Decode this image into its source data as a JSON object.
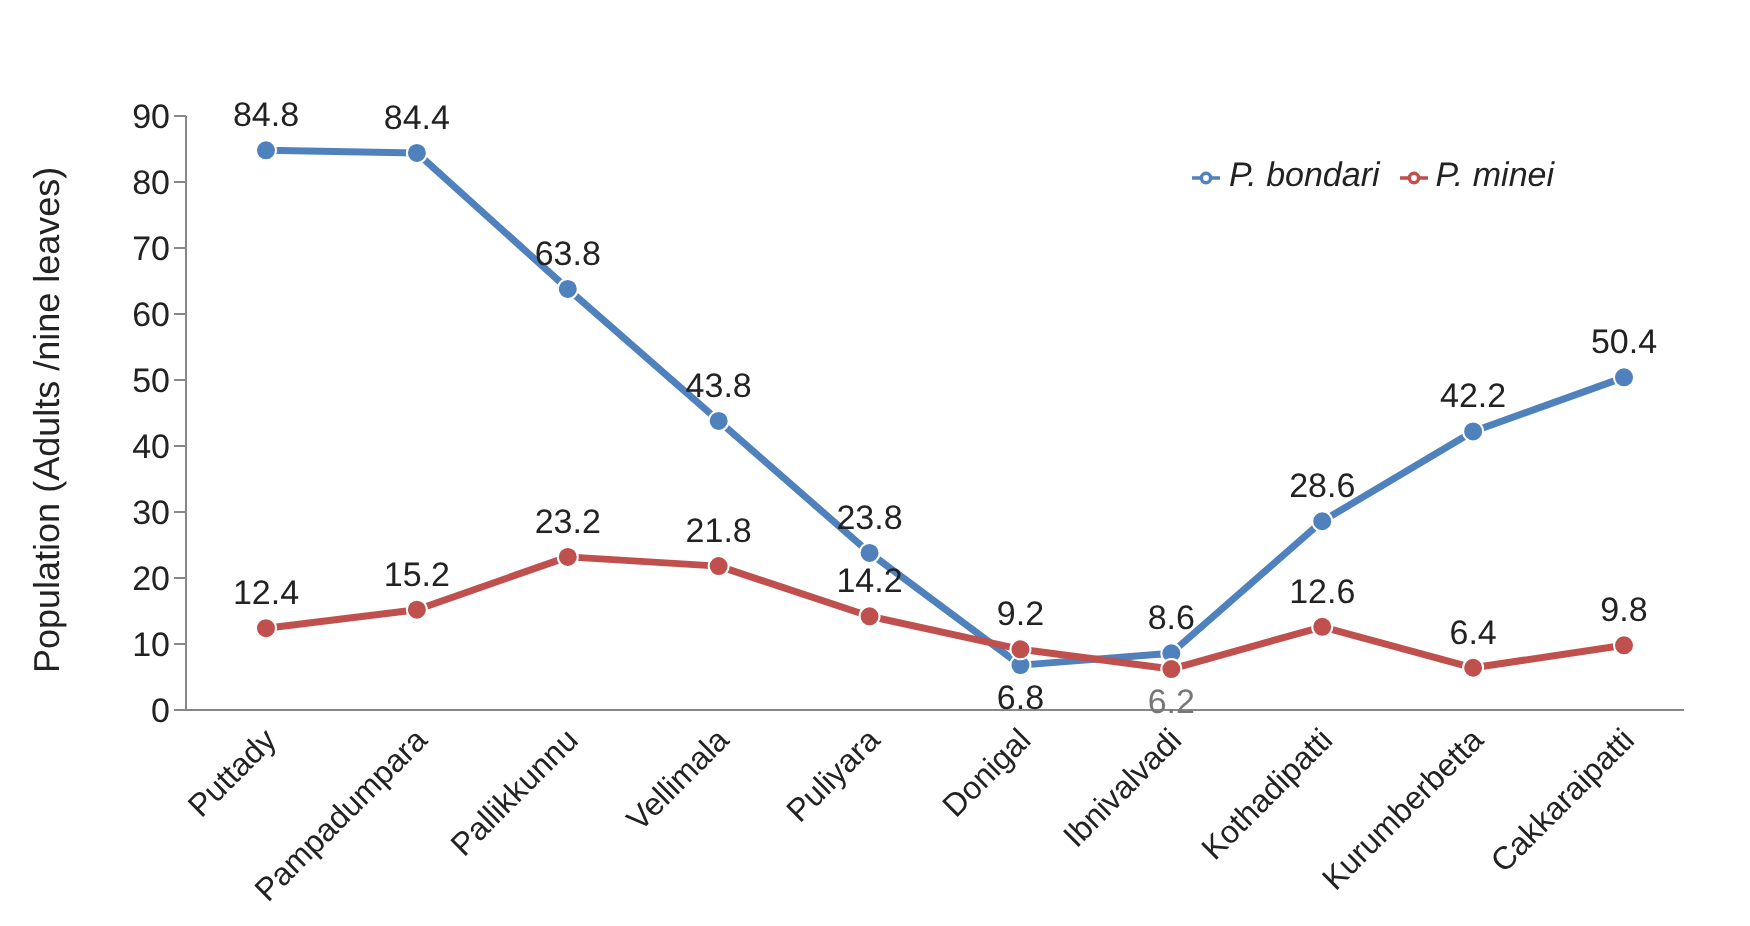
{
  "chart_data": {
    "type": "line",
    "ylabel": "Population (Adults /nine leaves)",
    "categories": [
      "Puttady",
      "Pampadumpara",
      "Pallikkunnu",
      "Vellimala",
      "Puliyara",
      "Donigal",
      "Ibnivalvadi",
      "Kothadipatti",
      "Kurumberbetta",
      "Cakkaraipatti"
    ],
    "series": [
      {
        "name": "P. bondari",
        "color": "#4f81bd",
        "values": [
          84.8,
          84.4,
          63.8,
          43.8,
          23.8,
          6.8,
          8.6,
          28.6,
          42.2,
          50.4
        ]
      },
      {
        "name": "P. minei",
        "color": "#c0504d",
        "values": [
          12.4,
          15.2,
          23.2,
          21.8,
          14.2,
          9.2,
          6.2,
          12.6,
          6.4,
          9.8
        ]
      }
    ],
    "ylim": [
      0,
      90
    ],
    "yticks": [
      0,
      10,
      20,
      30,
      40,
      50,
      60,
      70,
      80,
      90
    ],
    "grid": false,
    "legend": "top right",
    "marker": "circle",
    "line_style": "solid",
    "data_labels": true
  }
}
